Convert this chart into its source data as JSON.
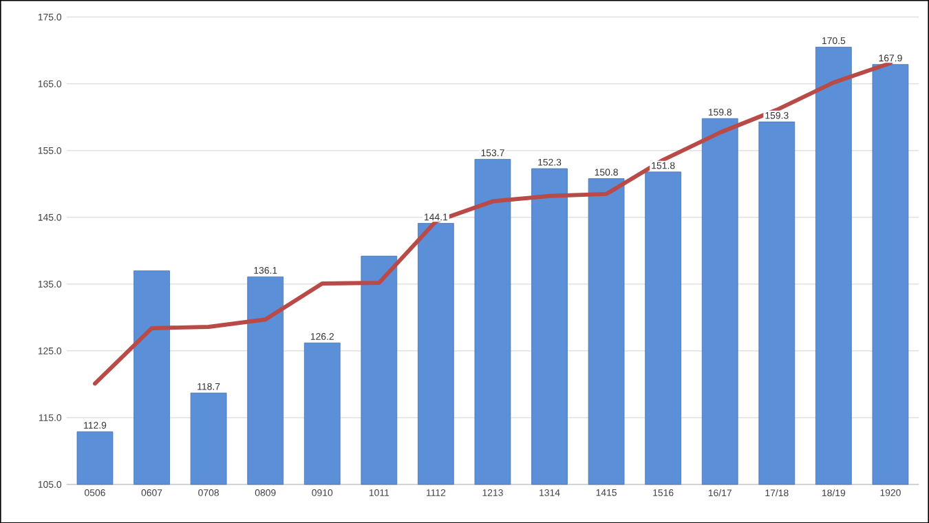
{
  "chart_data": {
    "type": "bar",
    "categories": [
      "0506",
      "0607",
      "0708",
      "0809",
      "0910",
      "1011",
      "1112",
      "1213",
      "1314",
      "1415",
      "1516",
      "16/17",
      "17/18",
      "18/19",
      "1920"
    ],
    "series": [
      {
        "color": "#5b8fd8",
        "values": [
          112.9,
          137.0,
          118.7,
          136.1,
          126.2,
          139.2,
          144.1,
          153.7,
          152.3,
          150.8,
          151.8,
          159.8,
          159.3,
          170.5,
          167.9
        ],
        "value_labels": [
          "112.9",
          null,
          "118.7",
          "136.1",
          "126.2",
          null,
          "144.1",
          "153.7",
          "152.3",
          "150.8",
          "151.8",
          "159.8",
          "159.3",
          "170.5",
          "167.9"
        ]
      },
      {
        "type": "line",
        "color": "#b84a48",
        "values": [
          120.1,
          128.4,
          128.6,
          129.7,
          135.1,
          135.2,
          144.4,
          147.4,
          148.2,
          148.5,
          153.6,
          157.7,
          161.1,
          165.2,
          168.1
        ]
      }
    ],
    "ylim": [
      105,
      175
    ],
    "yticks": [
      {
        "value": 105,
        "label": "105.0"
      },
      {
        "value": 115,
        "label": "115.0"
      },
      {
        "value": 125,
        "label": "125.0"
      },
      {
        "value": 135,
        "label": "135.0"
      },
      {
        "value": 145,
        "label": "145.0"
      },
      {
        "value": 155,
        "label": "155.0"
      },
      {
        "value": 165,
        "label": "165.0"
      },
      {
        "value": 175,
        "label": "175.0"
      }
    ],
    "grid": "y"
  }
}
